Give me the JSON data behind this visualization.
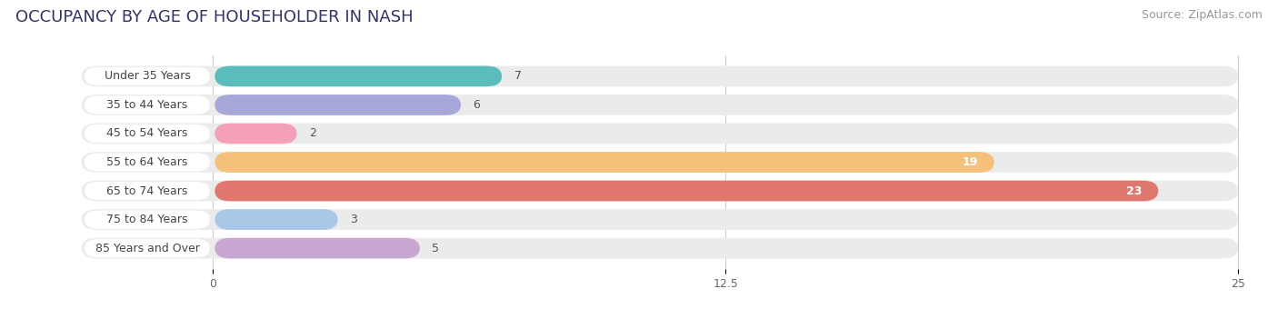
{
  "title": "OCCUPANCY BY AGE OF HOUSEHOLDER IN NASH",
  "source": "Source: ZipAtlas.com",
  "categories": [
    "Under 35 Years",
    "35 to 44 Years",
    "45 to 54 Years",
    "55 to 64 Years",
    "65 to 74 Years",
    "75 to 84 Years",
    "85 Years and Over"
  ],
  "values": [
    7,
    6,
    2,
    19,
    23,
    3,
    5
  ],
  "bar_colors": [
    "#5bbcbc",
    "#a8a8d8",
    "#f4a0b8",
    "#f5c07a",
    "#e07870",
    "#a8c8e8",
    "#c8a8d0"
  ],
  "xlim": [
    0,
    25
  ],
  "xticks": [
    0,
    12.5,
    25
  ],
  "background_color": "#ffffff",
  "bar_bg_color": "#ebebeb",
  "title_fontsize": 13,
  "source_fontsize": 9,
  "label_fontsize": 9,
  "value_fontsize": 9
}
